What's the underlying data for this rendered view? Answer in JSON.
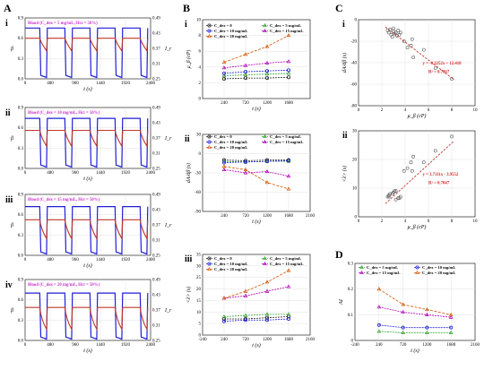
{
  "panel_labels": {
    "A": "A",
    "B": "B",
    "C": "C",
    "D": "D"
  },
  "sub_labels": {
    "i": "i",
    "ii": "ii",
    "iii": "iii",
    "iv": "iv"
  },
  "colors": {
    "blue": "#1f1fd6",
    "red": "#c0392b",
    "black": "#222222",
    "green": "#2ca02c",
    "navy": "#1f1fd6",
    "violet": "#b000b5",
    "orange": "#d35400",
    "grid": "#d9d9d9",
    "box": "#cc33cc"
  },
  "legend_entries": {
    "c0": "C_dex = 0",
    "c5": "C_dex = 5 mg/mL",
    "c10": "C_dex = 10 mg/mL",
    "c15": "C_dex = 15 mg/mL",
    "c20": "C_dex = 20 mg/mL"
  },
  "chart_data": [
    {
      "id": "A",
      "type": "line",
      "xlabel": "t (s)",
      "ylabel_left": "β",
      "ylabel_right": "I_r",
      "x_ticks": [
        "0",
        "480",
        "960",
        "1440",
        "1920",
        "2400"
      ],
      "xlim": [
        0,
        2400
      ],
      "y_left_ticks": [
        "0.0",
        "0.3",
        "0.6",
        "0.9"
      ],
      "y_left_lim": [
        0,
        0.9
      ],
      "y_right_ticks": [
        "0.25",
        "0.31",
        "0.37",
        "0.43",
        "0.49"
      ],
      "y_right_lim": [
        0.25,
        0.49
      ],
      "rows": [
        {
          "label": "i",
          "annotation": "Blood (C_dex = 5 mg/mL, Hct = 50%)",
          "beta_level": 0.75,
          "ir_level": 0.41,
          "pulse_starts": [
            280,
            760,
            1240,
            1720,
            2200
          ]
        },
        {
          "label": "ii",
          "annotation": "Blood (C_dex = 10 mg/mL, Hct = 50%)",
          "beta_level": 0.74,
          "ir_level": 0.4,
          "pulse_starts": [
            280,
            760,
            1240,
            1720,
            2200
          ]
        },
        {
          "label": "iii",
          "annotation": "Blood (C_dex = 15 mg/mL, Hct = 50%)",
          "beta_level": 0.72,
          "ir_level": 0.39,
          "pulse_starts": [
            280,
            760,
            1240,
            1720,
            2200
          ]
        },
        {
          "label": "iv",
          "annotation": "Blood (C_dex = 20 mg/mL, Hct = 50%)",
          "beta_level": 0.7,
          "ir_level": 0.38,
          "pulse_starts": [
            280,
            760,
            1240,
            1720,
            2200
          ]
        }
      ]
    },
    {
      "id": "B-i",
      "type": "line",
      "xlabel": "t (s)",
      "ylabel": "μ_β (cP)",
      "x_ticks": [
        "240",
        "720",
        "1200",
        "1680"
      ],
      "x": [
        240,
        720,
        1200,
        1680
      ],
      "xlim": [
        -240,
        2160
      ],
      "ylim": [
        0,
        10
      ],
      "y_ticks": [
        "0",
        "2",
        "4",
        "6",
        "8",
        "10"
      ],
      "series": [
        {
          "name": "C_dex = 0",
          "values": [
            2.5,
            2.6,
            2.6,
            2.7
          ]
        },
        {
          "name": "C_dex = 5 mg/mL",
          "values": [
            2.9,
            3.0,
            3.1,
            3.2
          ]
        },
        {
          "name": "C_dex = 10 mg/mL",
          "values": [
            3.2,
            3.4,
            3.5,
            3.6
          ]
        },
        {
          "name": "C_dex = 15 mg/mL",
          "values": [
            3.9,
            4.2,
            4.5,
            4.7
          ]
        },
        {
          "name": "C_dex = 20 mg/mL",
          "values": [
            4.6,
            5.6,
            6.6,
            8.0
          ]
        }
      ]
    },
    {
      "id": "B-ii",
      "type": "line",
      "xlabel": "t (s)",
      "ylabel": "dA/dβ (s)",
      "x_ticks": [
        "240",
        "720",
        "1200",
        "1680",
        "2160"
      ],
      "x": [
        240,
        720,
        1200,
        1680
      ],
      "xlim": [
        -240,
        2160
      ],
      "ylim": [
        -90,
        30
      ],
      "y_ticks": [
        "30",
        "0",
        "-30",
        "-60",
        "-90"
      ],
      "series": [
        {
          "name": "C_dex = 0",
          "values": [
            -10,
            -11,
            -10,
            -10
          ]
        },
        {
          "name": "C_dex = 5 mg/mL",
          "values": [
            -12,
            -13,
            -12,
            -12
          ]
        },
        {
          "name": "C_dex = 10 mg/mL",
          "values": [
            -14,
            -13,
            -12,
            -11
          ]
        },
        {
          "name": "C_dex = 15 mg/mL",
          "values": [
            -25,
            -30,
            -28,
            -35
          ]
        },
        {
          "name": "C_dex = 20 mg/mL",
          "values": [
            -20,
            -25,
            -45,
            -55
          ]
        }
      ]
    },
    {
      "id": "B-iii",
      "type": "line",
      "xlabel": "t (s)",
      "ylabel": "<λ> (s)",
      "x_ticks": [
        "-240",
        "240",
        "720",
        "1200",
        "1680",
        "2160"
      ],
      "x": [
        240,
        720,
        1200,
        1680
      ],
      "xlim": [
        -240,
        2160
      ],
      "ylim": [
        0,
        35
      ],
      "y_ticks": [
        "0",
        "5",
        "10",
        "15",
        "20",
        "25",
        "30",
        "35"
      ],
      "series": [
        {
          "name": "C_dex = 0",
          "values": [
            7,
            7,
            7.5,
            8
          ]
        },
        {
          "name": "C_dex = 5 mg/mL",
          "values": [
            8,
            8.5,
            9,
            9
          ]
        },
        {
          "name": "C_dex = 10 mg/mL",
          "values": [
            6,
            6.5,
            6.5,
            7
          ]
        },
        {
          "name": "C_dex = 15 mg/mL",
          "values": [
            16,
            17,
            19,
            21
          ]
        },
        {
          "name": "C_dex = 20 mg/mL",
          "values": [
            16,
            19,
            23,
            28
          ]
        }
      ]
    },
    {
      "id": "C-i",
      "type": "scatter",
      "xlabel": "μ_β (cP)",
      "ylabel": "dA/dβ (s)",
      "xlim": [
        0,
        10
      ],
      "ylim": [
        -80,
        0
      ],
      "x_ticks": [
        "0",
        "2",
        "4",
        "6",
        "8",
        "10"
      ],
      "y_ticks": [
        "0",
        "-20",
        "-40",
        "-60",
        "-80"
      ],
      "fit_equation": "y = -8.3252x + 12.418",
      "fit_r2": "R² = 0.7367",
      "fit": {
        "slope": -8.3252,
        "intercept": 12.418,
        "x_range": [
          2.3,
          8.2
        ]
      },
      "points": [
        [
          2.5,
          -10
        ],
        [
          2.6,
          -12
        ],
        [
          2.7,
          -9
        ],
        [
          2.8,
          -14
        ],
        [
          3.0,
          -11
        ],
        [
          3.1,
          -13
        ],
        [
          3.2,
          -12
        ],
        [
          3.3,
          -15
        ],
        [
          3.4,
          -10
        ],
        [
          3.5,
          -14
        ],
        [
          3.6,
          -12
        ],
        [
          3.9,
          -20
        ],
        [
          4.2,
          -26
        ],
        [
          4.5,
          -24
        ],
        [
          4.7,
          -35
        ],
        [
          4.6,
          -18
        ],
        [
          5.6,
          -28
        ],
        [
          6.6,
          -45
        ],
        [
          8.0,
          -55
        ],
        [
          3.0,
          -8
        ],
        [
          2.9,
          -16
        ]
      ]
    },
    {
      "id": "C-ii",
      "type": "scatter",
      "xlabel": "μ_β (cP)",
      "ylabel": "<λ> (s)",
      "xlim": [
        0,
        10
      ],
      "ylim": [
        0,
        30
      ],
      "x_ticks": [
        "0",
        "2",
        "4",
        "6",
        "8",
        "10"
      ],
      "y_ticks": [
        "0",
        "10",
        "20",
        "30"
      ],
      "fit_equation": "y = 3.7111x - 3.9552",
      "fit_r2": "R² = 0.7047",
      "fit": {
        "slope": 3.7111,
        "intercept": -3.9552,
        "x_range": [
          2.3,
          8.2
        ]
      },
      "points": [
        [
          2.5,
          7
        ],
        [
          2.6,
          7
        ],
        [
          2.6,
          7.5
        ],
        [
          2.7,
          8
        ],
        [
          2.9,
          8
        ],
        [
          3.0,
          8.5
        ],
        [
          3.1,
          9
        ],
        [
          3.2,
          9
        ],
        [
          3.2,
          6
        ],
        [
          3.4,
          6.5
        ],
        [
          3.5,
          6.5
        ],
        [
          3.6,
          7
        ],
        [
          3.9,
          16
        ],
        [
          4.2,
          17
        ],
        [
          4.5,
          19
        ],
        [
          4.7,
          21
        ],
        [
          4.6,
          16
        ],
        [
          5.6,
          19
        ],
        [
          6.6,
          23
        ],
        [
          8.0,
          28
        ]
      ]
    },
    {
      "id": "D",
      "type": "line",
      "xlabel": "t (s)",
      "ylabel": "AI",
      "x_ticks": [
        "-240",
        "240",
        "720",
        "1200",
        "1680",
        "2160"
      ],
      "x": [
        240,
        720,
        1200,
        1680
      ],
      "xlim": [
        -240,
        2160
      ],
      "ylim": [
        0,
        0.3
      ],
      "y_ticks": [
        "0",
        "0.1",
        "0.2",
        "0.3"
      ],
      "series": [
        {
          "name": "C_dex = 5 mg/mL",
          "values": [
            0.035,
            0.03,
            0.03,
            0.03
          ]
        },
        {
          "name": "C_dex = 10 mg/mL",
          "values": [
            0.06,
            0.05,
            0.05,
            0.05
          ]
        },
        {
          "name": "C_dex = 15 mg/mL",
          "values": [
            0.13,
            0.11,
            0.1,
            0.09
          ]
        },
        {
          "name": "C_dex = 20 mg/mL",
          "values": [
            0.2,
            0.14,
            0.12,
            0.1
          ]
        }
      ]
    }
  ]
}
